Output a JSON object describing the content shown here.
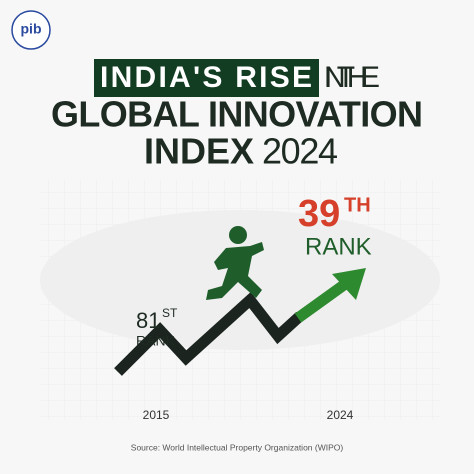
{
  "header": {
    "logo": "pib"
  },
  "title": {
    "highlight": "INDIA'S RISE",
    "line1_rest": "IN THE",
    "line2": "GLOBAL INNOVATION",
    "line3_bold": "INDEX",
    "line3_year": "2024"
  },
  "ranks": [
    {
      "number": "81",
      "suffix": "ST",
      "label": "RANK"
    },
    {
      "number": "39",
      "suffix": "TH",
      "label": "RANK"
    }
  ],
  "years": [
    "2015",
    "2024"
  ],
  "source": "Source: World Intellectual Property Organization (WIPO)"
}
